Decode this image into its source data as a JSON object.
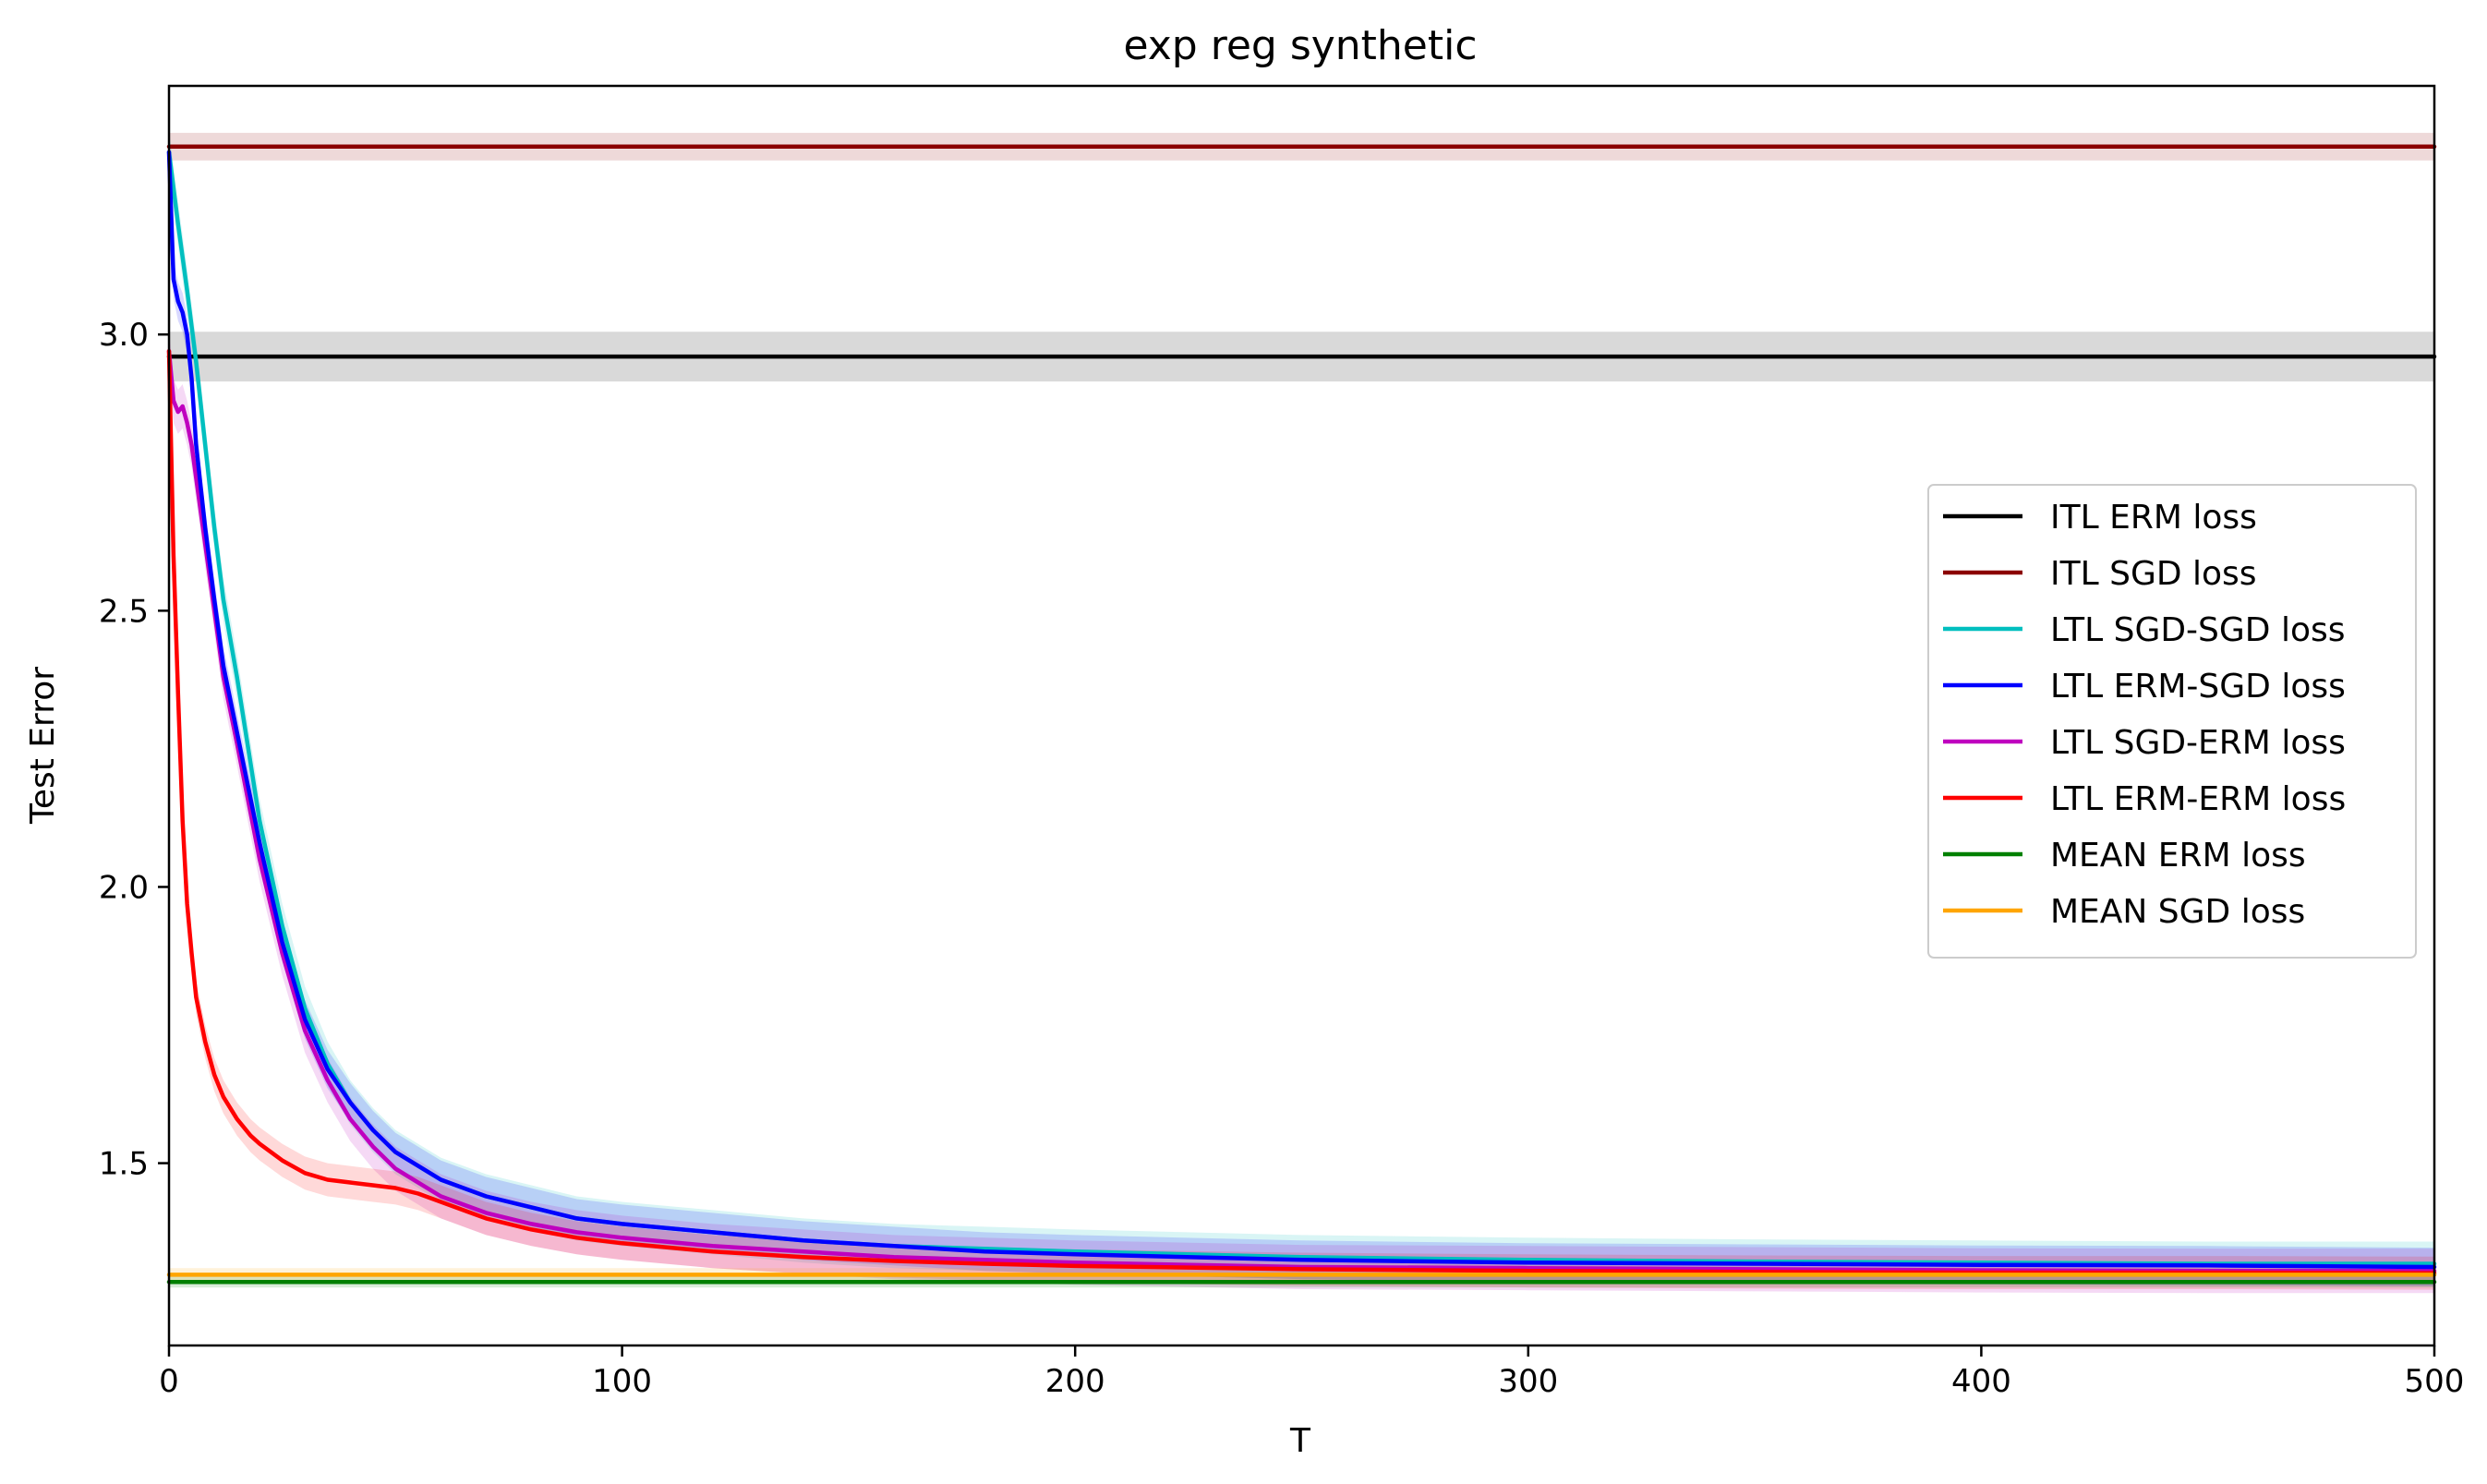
{
  "chart_data": {
    "type": "line",
    "title": "exp reg synthetic",
    "xlabel": "T",
    "ylabel": "Test Error",
    "xlim": [
      0,
      500
    ],
    "ylim": [
      1.17,
      3.45
    ],
    "xticks": [
      0,
      100,
      200,
      300,
      400,
      500
    ],
    "xtick_labels": [
      "0",
      "100",
      "200",
      "300",
      "400",
      "500"
    ],
    "yticks": [
      1.5,
      2.0,
      2.5,
      3.0
    ],
    "ytick_labels": [
      "1.5",
      "2.0",
      "2.5",
      "3.0"
    ],
    "grid": false,
    "legend_position": "center-right",
    "series": [
      {
        "name": "ITL ERM loss",
        "color": "#000000",
        "band": 0.045,
        "x": [
          0,
          500
        ],
        "y": [
          2.96,
          2.96
        ]
      },
      {
        "name": "ITL SGD loss",
        "color": "#8b0000",
        "band": 0.025,
        "x": [
          0,
          500
        ],
        "y": [
          3.34,
          3.34
        ]
      },
      {
        "name": "LTL SGD-SGD loss",
        "color": "#00bfbf",
        "band": 0.04,
        "x": [
          0,
          2,
          4,
          6,
          8,
          10,
          12,
          15,
          20,
          25,
          30,
          35,
          40,
          45,
          50,
          60,
          70,
          80,
          90,
          100,
          120,
          140,
          160,
          180,
          200,
          250,
          300,
          350,
          400,
          450,
          500
        ],
        "y": [
          3.33,
          3.2,
          3.08,
          2.95,
          2.8,
          2.65,
          2.52,
          2.38,
          2.12,
          1.93,
          1.78,
          1.68,
          1.61,
          1.56,
          1.52,
          1.47,
          1.44,
          1.42,
          1.4,
          1.39,
          1.375,
          1.36,
          1.35,
          1.345,
          1.34,
          1.33,
          1.325,
          1.322,
          1.32,
          1.318,
          1.318
        ]
      },
      {
        "name": "LTL ERM-SGD loss",
        "color": "#0000ff",
        "band": 0.035,
        "x": [
          0,
          1,
          2,
          3,
          4,
          5,
          6,
          8,
          10,
          12,
          15,
          20,
          25,
          30,
          35,
          40,
          45,
          50,
          60,
          70,
          80,
          90,
          100,
          120,
          140,
          160,
          180,
          200,
          250,
          300,
          350,
          400,
          450,
          500
        ],
        "y": [
          3.33,
          3.1,
          3.06,
          3.04,
          3.0,
          2.92,
          2.8,
          2.65,
          2.52,
          2.4,
          2.28,
          2.08,
          1.9,
          1.76,
          1.67,
          1.61,
          1.56,
          1.52,
          1.47,
          1.44,
          1.42,
          1.4,
          1.39,
          1.375,
          1.36,
          1.35,
          1.34,
          1.335,
          1.325,
          1.32,
          1.318,
          1.316,
          1.315,
          1.312
        ]
      },
      {
        "name": "LTL SGD-ERM loss",
        "color": "#bf00bf",
        "band": 0.04,
        "x": [
          0,
          1,
          2,
          3,
          4,
          5,
          6,
          8,
          10,
          12,
          15,
          20,
          25,
          30,
          35,
          40,
          45,
          50,
          60,
          70,
          80,
          90,
          100,
          120,
          140,
          160,
          180,
          200,
          250,
          300,
          350,
          400,
          450,
          500
        ],
        "y": [
          2.97,
          2.88,
          2.86,
          2.87,
          2.84,
          2.8,
          2.74,
          2.62,
          2.5,
          2.38,
          2.26,
          2.05,
          1.88,
          1.74,
          1.65,
          1.58,
          1.53,
          1.49,
          1.44,
          1.41,
          1.39,
          1.375,
          1.365,
          1.35,
          1.34,
          1.33,
          1.325,
          1.32,
          1.312,
          1.31,
          1.308,
          1.306,
          1.305,
          1.305
        ]
      },
      {
        "name": "LTL ERM-ERM loss",
        "color": "#ff0000",
        "band": 0.03,
        "x": [
          0,
          1,
          2,
          3,
          4,
          5,
          6,
          8,
          10,
          12,
          15,
          18,
          20,
          25,
          30,
          35,
          40,
          45,
          50,
          55,
          60,
          70,
          80,
          90,
          100,
          120,
          140,
          160,
          180,
          200,
          250,
          300,
          350,
          400,
          450,
          500
        ],
        "y": [
          2.97,
          2.6,
          2.35,
          2.12,
          1.97,
          1.88,
          1.8,
          1.72,
          1.66,
          1.62,
          1.58,
          1.55,
          1.535,
          1.505,
          1.482,
          1.47,
          1.465,
          1.46,
          1.455,
          1.445,
          1.43,
          1.4,
          1.38,
          1.365,
          1.355,
          1.34,
          1.33,
          1.323,
          1.318,
          1.314,
          1.308,
          1.305,
          1.303,
          1.302,
          1.302,
          1.301
        ]
      },
      {
        "name": "MEAN ERM loss",
        "color": "#008000",
        "band": 0.01,
        "x": [
          0,
          500
        ],
        "y": [
          1.285,
          1.285
        ]
      },
      {
        "name": "MEAN SGD loss",
        "color": "#ffa500",
        "band": 0.012,
        "x": [
          0,
          500
        ],
        "y": [
          1.298,
          1.298
        ]
      }
    ]
  }
}
